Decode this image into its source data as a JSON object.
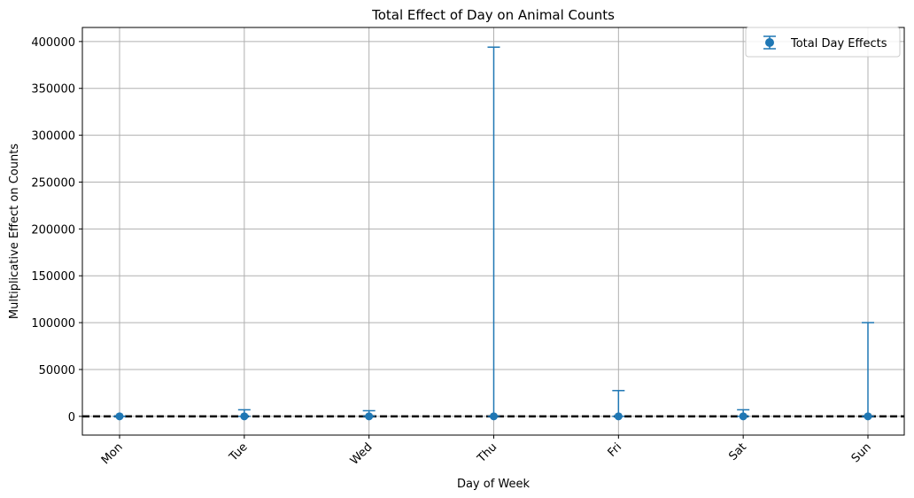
{
  "chart_data": {
    "type": "scatter",
    "title": "Total Effect of Day on Animal Counts",
    "xlabel": "Day of Week",
    "ylabel": "Multiplicative Effect on Counts",
    "categories": [
      "Mon",
      "Tue",
      "Wed",
      "Thu",
      "Fri",
      "Sat",
      "Sun"
    ],
    "series": [
      {
        "name": "Total Day Effects",
        "values": [
          1,
          1,
          1,
          1,
          1,
          1,
          1
        ],
        "upper": [
          1,
          7000,
          6000,
          394000,
          27500,
          7000,
          100000
        ],
        "lower": [
          1,
          0,
          0,
          0,
          0,
          0,
          0
        ]
      }
    ],
    "yticks": [
      0,
      50000,
      100000,
      150000,
      200000,
      250000,
      300000,
      350000,
      400000
    ],
    "ytick_labels": [
      "0",
      "50000",
      "100000",
      "150000",
      "200000",
      "250000",
      "300000",
      "350000",
      "400000"
    ],
    "ylim": [
      -20000,
      415000
    ],
    "reference_line": 1,
    "grid": true,
    "legend_position": "top-right",
    "colors": {
      "series": "#1f77b4",
      "reference": "#000000",
      "grid": "#b0b0b0"
    }
  }
}
